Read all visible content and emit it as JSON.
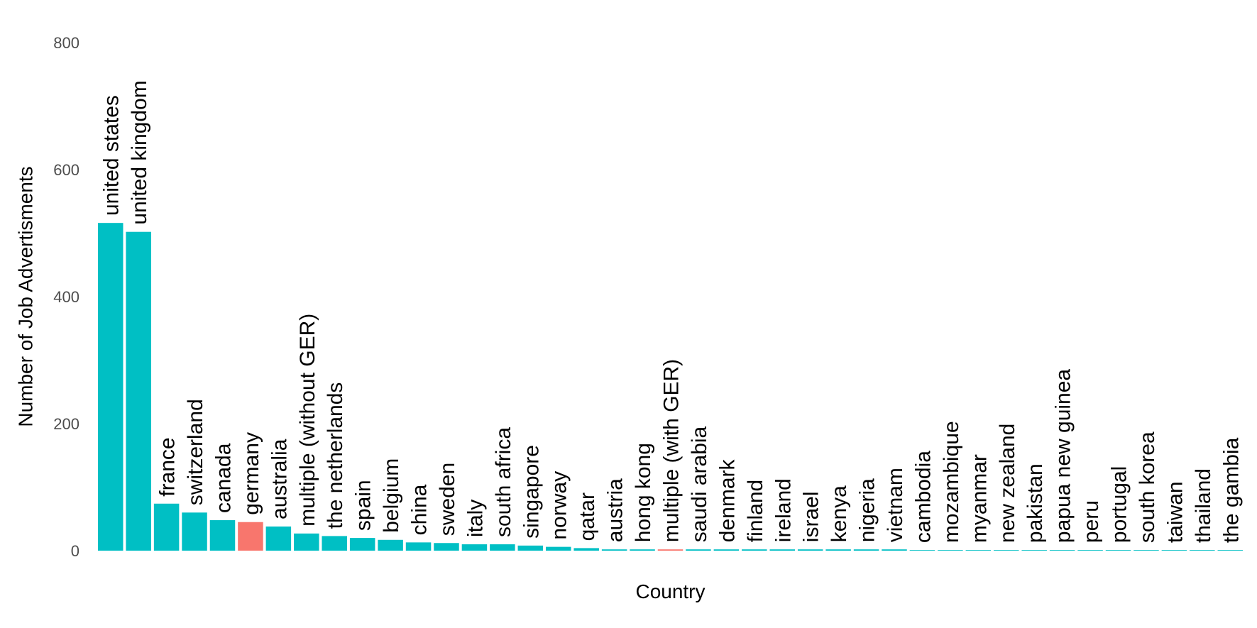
{
  "chart_data": {
    "type": "bar",
    "xlabel": "Country",
    "ylabel": "Number of Job Advertisments",
    "ylim": [
      0,
      800
    ],
    "yticks": [
      0,
      200,
      400,
      600,
      800
    ],
    "grid": false,
    "legend": "none",
    "colors": {
      "default": "#00bfc4",
      "highlight": "#f8766d"
    },
    "categories": [
      "united states",
      "united kingdom",
      "france",
      "switzerland",
      "canada",
      "germany",
      "australia",
      "multiple (without GER)",
      "the netherlands",
      "spain",
      "belgium",
      "china",
      "sweden",
      "italy",
      "south africa",
      "singapore",
      "norway",
      "qatar",
      "austria",
      "hong kong",
      "multiple (with GER)",
      "saudi arabia",
      "denmark",
      "finland",
      "ireland",
      "israel",
      "kenya",
      "nigeria",
      "vietnam",
      "cambodia",
      "mozambique",
      "myanmar",
      "new zealand",
      "pakistan",
      "papua new guinea",
      "peru",
      "portugal",
      "south korea",
      "taiwan",
      "thailand",
      "the gambia"
    ],
    "values": [
      516,
      502,
      74,
      60,
      48,
      45,
      38,
      27,
      23,
      20,
      17,
      13,
      12,
      10,
      10,
      8,
      6,
      4,
      2,
      2,
      2,
      2,
      2,
      2,
      2,
      2,
      2,
      2,
      2,
      1,
      1,
      1,
      1,
      1,
      1,
      1,
      1,
      1,
      1,
      1,
      1
    ],
    "highlight": [
      "germany",
      "multiple (with GER)"
    ]
  }
}
